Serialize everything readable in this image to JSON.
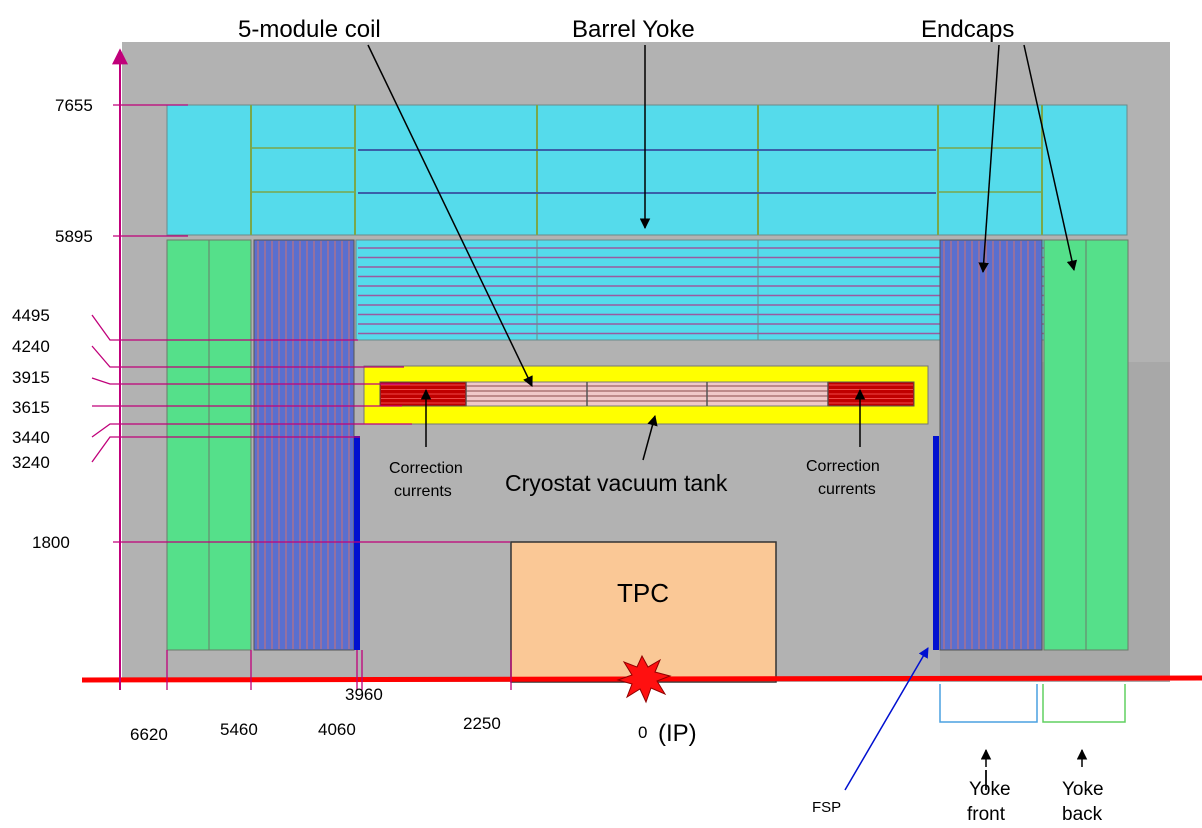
{
  "title_labels": {
    "coil": "5-module coil",
    "barrel": "Barrel Yoke",
    "endcaps": "Endcaps"
  },
  "radial_ticks": [
    "7655",
    "5895",
    "4495",
    "4240",
    "3915",
    "3615",
    "3440",
    "3240",
    "1800"
  ],
  "axial_ticks": {
    "t6620": "6620",
    "t5460": "5460",
    "t4060": "4060",
    "t3960": "3960",
    "t2250": "2250",
    "t0": "0",
    "ip": "(IP)"
  },
  "parts": {
    "tpc": "TPC",
    "cryostat": "Cryostat vacuum tank",
    "correction_left": [
      "Correction",
      "currents"
    ],
    "correction_right": [
      "Correction",
      "currents"
    ],
    "fsp": "FSP",
    "yoke_front": [
      "Yoke",
      "front"
    ],
    "yoke_back": [
      "Yoke",
      "back"
    ]
  },
  "colors": {
    "background_gray": "#b2b2b2",
    "yoke_cyan": "#55dbeb",
    "endcap_green": "#55e08a",
    "endcap_blue": "#5a6fcf",
    "cryostat_yellow": "#ffff00",
    "coil_pink": "#f0c8c8",
    "correction_red": "#c00000",
    "tpc_orange": "#fac896",
    "dimension_magenta": "#c0007a",
    "beam_red": "#ff0000",
    "fsp_blue": "#0010d0"
  }
}
